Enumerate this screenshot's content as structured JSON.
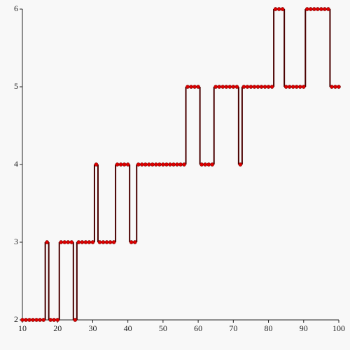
{
  "chart_data": {
    "type": "line",
    "step": true,
    "x": [
      10,
      11,
      12,
      13,
      14,
      15,
      16,
      17,
      18,
      19,
      20,
      21,
      22,
      23,
      24,
      25,
      26,
      27,
      28,
      29,
      30,
      31,
      32,
      33,
      34,
      35,
      36,
      37,
      38,
      39,
      40,
      41,
      42,
      43,
      44,
      45,
      46,
      47,
      48,
      49,
      50,
      51,
      52,
      53,
      54,
      55,
      56,
      57,
      58,
      59,
      60,
      61,
      62,
      63,
      64,
      65,
      66,
      67,
      68,
      69,
      70,
      71,
      72,
      73,
      74,
      75,
      76,
      77,
      78,
      79,
      80,
      81,
      82,
      83,
      84,
      85,
      86,
      87,
      88,
      89,
      90,
      91,
      92,
      93,
      94,
      95,
      96,
      97,
      98,
      99,
      100
    ],
    "values": [
      2,
      2,
      2,
      2,
      2,
      2,
      2,
      3,
      2,
      2,
      2,
      3,
      3,
      3,
      3,
      2,
      3,
      3,
      3,
      3,
      3,
      4,
      3,
      3,
      3,
      3,
      3,
      4,
      4,
      4,
      4,
      3,
      3,
      4,
      4,
      4,
      4,
      4,
      4,
      4,
      4,
      4,
      4,
      4,
      4,
      4,
      4,
      5,
      5,
      5,
      5,
      4,
      4,
      4,
      4,
      5,
      5,
      5,
      5,
      5,
      5,
      5,
      4,
      5,
      5,
      5,
      5,
      5,
      5,
      5,
      5,
      5,
      6,
      6,
      6,
      5,
      5,
      5,
      5,
      5,
      5,
      6,
      6,
      6,
      6,
      6,
      6,
      6,
      5,
      5,
      5
    ],
    "color": "#dd0000",
    "line_color": "#4a0000",
    "xlim": [
      10,
      100
    ],
    "xticks": [
      10,
      20,
      30,
      40,
      50,
      60,
      70,
      80,
      90,
      100
    ],
    "ylim": [
      2,
      6
    ],
    "yticks": [
      2,
      3,
      4,
      5,
      6
    ]
  }
}
